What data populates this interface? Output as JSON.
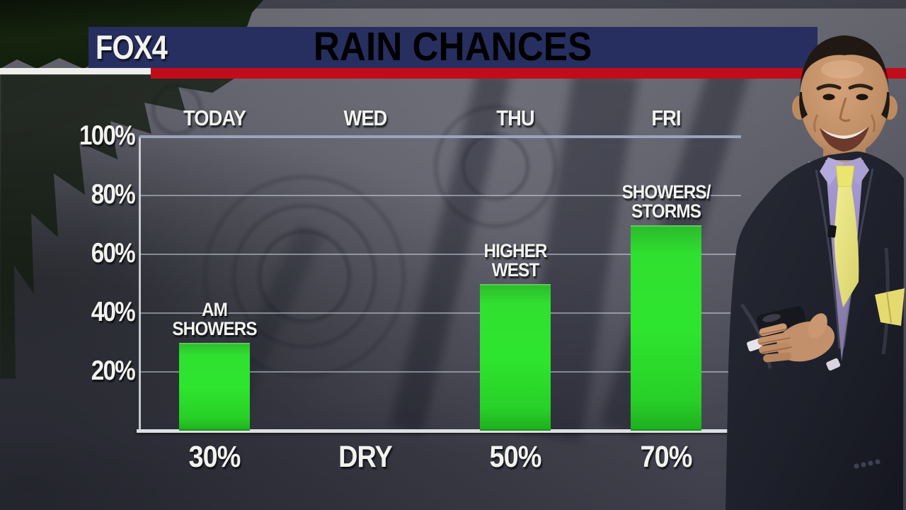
{
  "broadcast": {
    "station_logo": "FOX4",
    "title": "RAIN CHANCES"
  },
  "chart_data": {
    "type": "bar",
    "title": "RAIN CHANCES",
    "categories": [
      "TODAY",
      "WED",
      "THU",
      "FRI"
    ],
    "values": [
      30,
      0,
      50,
      70
    ],
    "value_labels": [
      "30%",
      "DRY",
      "50%",
      "70%"
    ],
    "bar_annotations": [
      [
        "AM",
        "SHOWERS"
      ],
      [],
      [
        "HIGHER",
        "WEST"
      ],
      [
        "SHOWERS/",
        "STORMS"
      ]
    ],
    "y_ticks": [
      {
        "value": 100,
        "label": "100%"
      },
      {
        "value": 80,
        "label": "80%"
      },
      {
        "value": 60,
        "label": "60%"
      },
      {
        "value": 40,
        "label": "40%"
      },
      {
        "value": 20,
        "label": "20%"
      }
    ],
    "ylim": [
      0,
      100
    ],
    "grid": true,
    "legend": "none",
    "bar_color": "#2bd62b"
  },
  "colors": {
    "header_navy": "#272f60",
    "stripe_red": "#c10d1b",
    "stripe_white": "#efefec",
    "bar_green": "#2bd62b",
    "axis_line": "#dcdfe3",
    "top_gridline": "#9aa5bb",
    "suit_navy": "#1e202b",
    "shirt_lavender": "#9d91c9",
    "tie_yellow": "#e9e47e"
  }
}
